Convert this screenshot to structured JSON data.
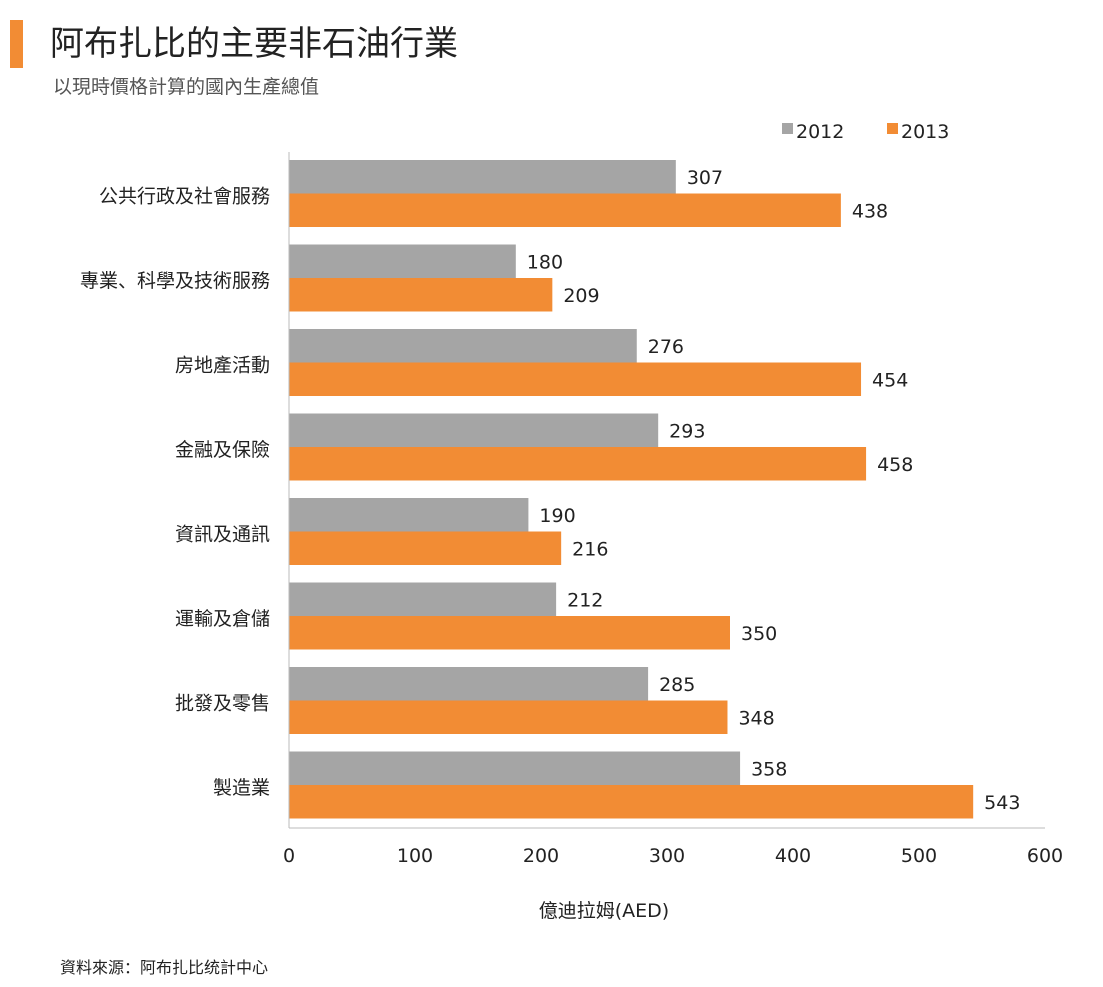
{
  "header": {
    "title": "阿布扎比的主要非石油行業",
    "subtitle": "以現時價格計算的國內生產總值"
  },
  "footer": {
    "source": "資料來源：阿布扎比统計中心"
  },
  "chart_data": {
    "type": "bar",
    "orientation": "horizontal",
    "categories": [
      "公共行政及社會服務",
      "專業、科學及技術服務",
      "房地產活動",
      "金融及保險",
      "資訊及通訊",
      "運輸及倉儲",
      "批發及零售",
      "製造業"
    ],
    "series": [
      {
        "name": "2012",
        "color": "#a5a5a5",
        "values": [
          307,
          180,
          276,
          293,
          190,
          212,
          285,
          358
        ]
      },
      {
        "name": "2013",
        "color": "#f28c34",
        "values": [
          438,
          209,
          454,
          458,
          216,
          350,
          348,
          543
        ]
      }
    ],
    "xlabel": "億迪拉姆(AED)",
    "ylabel": "",
    "xlim": [
      0,
      600
    ],
    "xticks": [
      "0",
      "100",
      "200",
      "300",
      "400",
      "500",
      "600"
    ],
    "grid": false,
    "legend": "top-right",
    "data_labels": true
  }
}
